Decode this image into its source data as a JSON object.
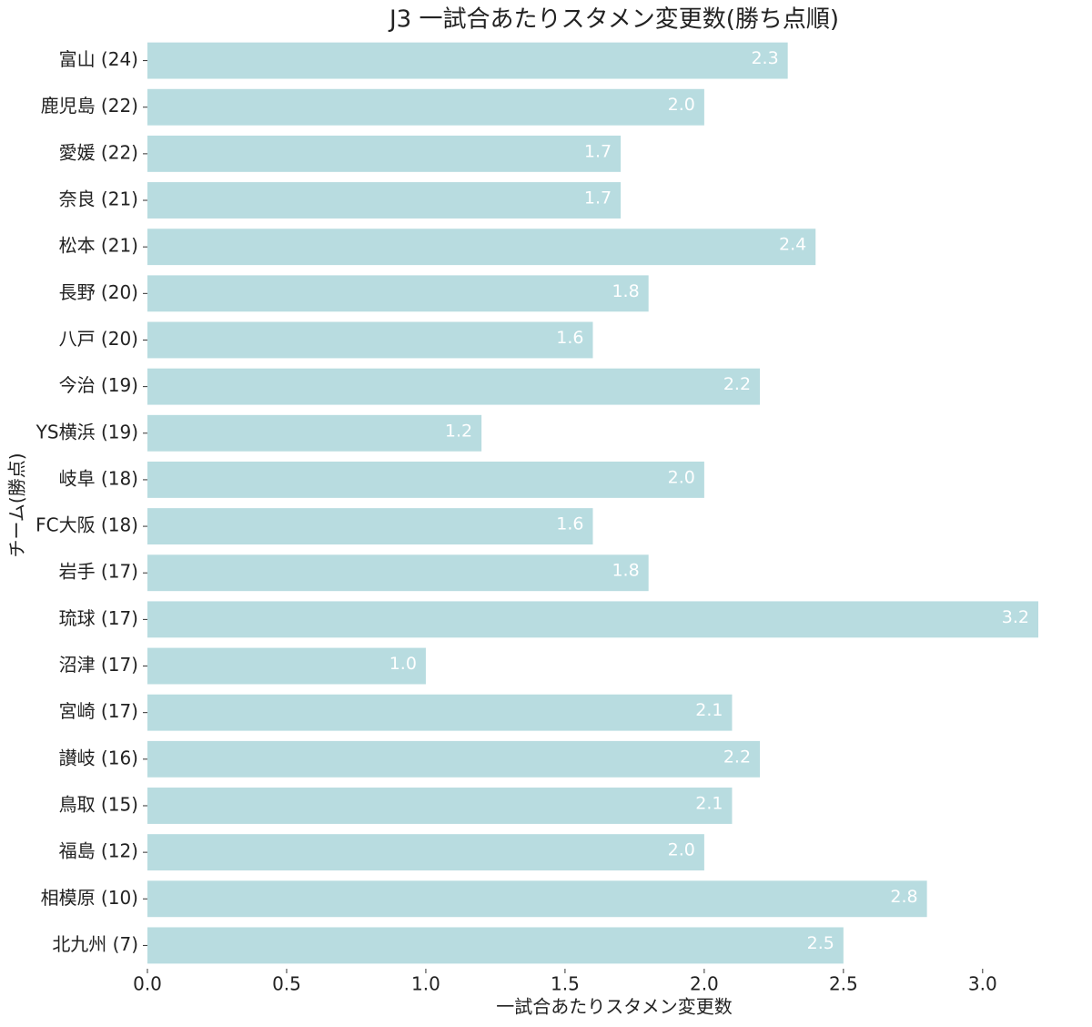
{
  "chart_data": {
    "type": "barh",
    "title": "J3 一試合あたりスタメン変更数(勝ち点順)",
    "xlabel": "一試合あたりスタメン変更数",
    "ylabel": "チーム(勝点)",
    "categories": [
      "富山 (24)",
      "鹿児島 (22)",
      "愛媛 (22)",
      "奈良 (21)",
      "松本 (21)",
      "長野 (20)",
      "八戸 (20)",
      "今治 (19)",
      "YS横浜 (19)",
      "岐阜 (18)",
      "FC大阪 (18)",
      "岩手 (17)",
      "琉球 (17)",
      "沼津 (17)",
      "宮崎 (17)",
      "讃岐 (16)",
      "鳥取 (15)",
      "福島 (12)",
      "相模原 (10)",
      "北九州 (7)"
    ],
    "values": [
      2.3,
      2.0,
      1.7,
      1.7,
      2.4,
      1.8,
      1.6,
      2.2,
      1.2,
      2.0,
      1.6,
      1.8,
      3.2,
      1.0,
      2.1,
      2.2,
      2.1,
      2.0,
      2.8,
      2.5
    ],
    "value_labels": [
      "2.3",
      "2.0",
      "1.7",
      "1.7",
      "2.4",
      "1.8",
      "1.6",
      "2.2",
      "1.2",
      "2.0",
      "1.6",
      "1.8",
      "3.2",
      "1.0",
      "2.1",
      "2.2",
      "2.1",
      "2.0",
      "2.8",
      "2.5"
    ],
    "color": "#b8dce0",
    "xlim": [
      0,
      3.2
    ],
    "xticks": [
      {
        "value": 0,
        "label": "0.0"
      },
      0.5,
      {
        "value": 1,
        "label": "1.0"
      },
      1.5,
      {
        "value": 2,
        "label": "2.0"
      },
      2.5,
      {
        "value": 3,
        "label": "3.0"
      }
    ],
    "grid": false
  }
}
